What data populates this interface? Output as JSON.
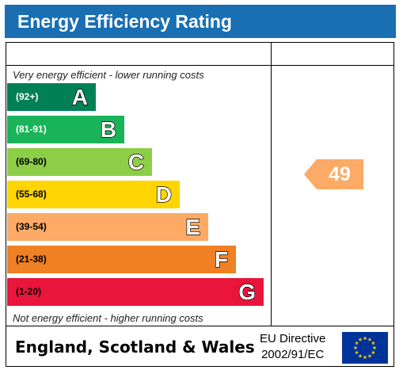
{
  "title": "Energy Efficiency Rating",
  "captions": {
    "top": "Very energy efficient - lower running costs",
    "bottom": "Not energy efficient - higher running costs"
  },
  "chart_data": {
    "type": "bar",
    "bands": [
      {
        "letter": "A",
        "range": "(92+)",
        "color": "#008054",
        "text_color": "#ffffff"
      },
      {
        "letter": "B",
        "range": "(81-91)",
        "color": "#19b459",
        "text_color": "#ffffff"
      },
      {
        "letter": "C",
        "range": "(69-80)",
        "color": "#8dce46",
        "text_color": "#000000"
      },
      {
        "letter": "D",
        "range": "(55-68)",
        "color": "#ffd500",
        "text_color": "#000000"
      },
      {
        "letter": "E",
        "range": "(39-54)",
        "color": "#fcaa65",
        "text_color": "#000000"
      },
      {
        "letter": "F",
        "range": "(21-38)",
        "color": "#ef8023",
        "text_color": "#000000"
      },
      {
        "letter": "G",
        "range": "(1-20)",
        "color": "#e9153b",
        "text_color": "#000000"
      }
    ],
    "current_rating": {
      "value": "49",
      "band": "E",
      "color": "#fcaa65"
    }
  },
  "footer": {
    "region": "England, Scotland & Wales",
    "directive_line1": "EU Directive",
    "directive_line2": "2002/91/EC"
  },
  "colors": {
    "title_bar": "#1a6fb3",
    "eu_flag": "#003399",
    "eu_stars": "#ffcc00"
  }
}
